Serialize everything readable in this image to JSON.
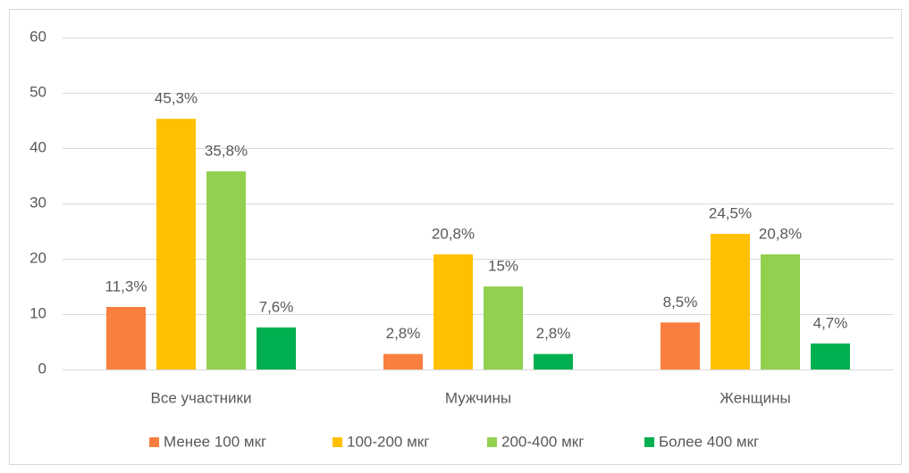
{
  "chart_data": {
    "type": "bar",
    "categories": [
      "Все участники",
      "Мужчины",
      "Женщины"
    ],
    "series": [
      {
        "name": "Менее 100 мкг",
        "color": "#f97f3f",
        "values": [
          11.3,
          2.8,
          8.5
        ],
        "value_labels": [
          "11,3%",
          "2,8%",
          "8,5%"
        ]
      },
      {
        "name": "100-200 мкг",
        "color": "#ffc000",
        "values": [
          45.3,
          20.8,
          24.5
        ],
        "value_labels": [
          "45,3%",
          "20,8%",
          "24,5%"
        ]
      },
      {
        "name": "200-400 мкг",
        "color": "#92d050",
        "values": [
          35.8,
          15,
          20.8
        ],
        "value_labels": [
          "35,8%",
          "15%",
          "20,8%"
        ]
      },
      {
        "name": "Более 400 мкг",
        "color": "#00b050",
        "values": [
          7.6,
          2.8,
          4.7
        ],
        "value_labels": [
          "7,6%",
          "2,8%",
          "4,7%"
        ]
      }
    ],
    "ylim": [
      0,
      60
    ],
    "yticks": [
      0,
      10,
      20,
      30,
      40,
      50,
      60
    ],
    "grid": true,
    "legend": "bottom"
  }
}
